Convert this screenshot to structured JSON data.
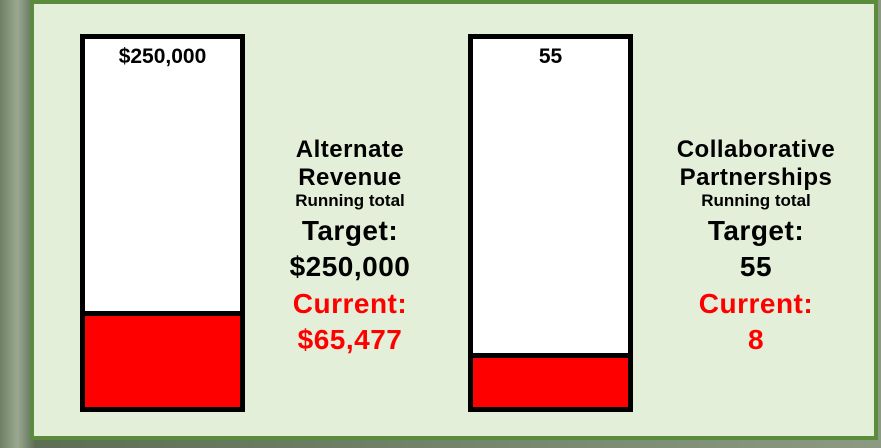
{
  "chart_data": [
    {
      "type": "progress",
      "title": "Alternate Revenue",
      "subtitle": "Running total",
      "target_label": "Target:",
      "target": 250000,
      "target_value_label": "$250,000",
      "current_label": "Current:",
      "current": 65477,
      "current_value_label": "$65,477",
      "color": "#ff0000"
    },
    {
      "type": "progress",
      "title": "Collaborative Partnerships",
      "subtitle": "Running total",
      "target_label": "Target:",
      "target": 55,
      "current_label": "Current:",
      "current": 8,
      "color": "#ff0000"
    }
  ]
}
